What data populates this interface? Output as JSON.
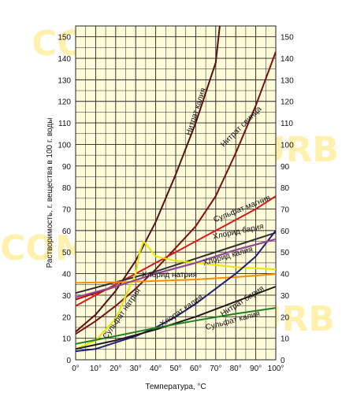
{
  "chart_data": {
    "type": "line",
    "xlabel": "Температура, °С",
    "ylabel": "Растворимость, г. вещества в 100 г. воды",
    "xlim": [
      0,
      100
    ],
    "ylim": [
      0,
      155
    ],
    "x_ticks": [
      "0°",
      "10°",
      "20°",
      "30°",
      "40°",
      "50°",
      "60°",
      "70°",
      "80°",
      "90°",
      "100°"
    ],
    "y_ticks": [
      "0",
      "10",
      "20",
      "30",
      "40",
      "50",
      "60",
      "70",
      "80",
      "90",
      "100",
      "110",
      "120",
      "130",
      "140",
      "150"
    ],
    "grid": true,
    "watermarks": [
      "COM",
      "NURB",
      "COM",
      "NURB"
    ],
    "series": [
      {
        "name": "Нитрат калия",
        "color": "#5a0f0f",
        "x": [
          0,
          10,
          20,
          30,
          40,
          50,
          60,
          70,
          72
        ],
        "y": [
          13,
          21,
          32,
          46,
          64,
          86,
          110,
          138,
          155
        ]
      },
      {
        "name": "Нитрат свинца",
        "color": "#7a1010",
        "x": [
          0,
          10,
          20,
          30,
          40,
          50,
          60,
          70,
          80,
          90,
          100
        ],
        "y": [
          12,
          18,
          25,
          33,
          42,
          52,
          62,
          76,
          96,
          118,
          143
        ]
      },
      {
        "name": "Сульфат магния",
        "color": "#d81818",
        "x": [
          0,
          10,
          20,
          30,
          40,
          50,
          60,
          70,
          80,
          90,
          100
        ],
        "y": [
          25,
          30,
          35,
          40,
          45,
          50,
          55,
          60,
          65,
          70,
          76
        ]
      },
      {
        "name": "Хлорид бария",
        "color": "#303030",
        "x": [
          0,
          20,
          40,
          60,
          80,
          100
        ],
        "y": [
          31,
          36,
          41,
          47,
          53,
          59
        ]
      },
      {
        "name": "Хлорид калия",
        "color": "#c00000",
        "x": [
          0,
          20,
          40,
          60,
          80,
          100
        ],
        "y": [
          28,
          34,
          40,
          45,
          51,
          56
        ]
      },
      {
        "name": "Хлорид натрия",
        "color": "#ff8c00",
        "x": [
          0,
          20,
          40,
          60,
          80,
          100
        ],
        "y": [
          35.7,
          36,
          36.6,
          37.3,
          38.4,
          39.8
        ]
      },
      {
        "name": "Сульфат натрия",
        "color": "#e6e600",
        "x": [
          0,
          10,
          20,
          30,
          32,
          34,
          40,
          50,
          60,
          80,
          100
        ],
        "y": [
          5,
          9,
          19,
          40,
          50,
          55,
          48,
          46,
          45,
          43,
          42
        ]
      },
      {
        "name": "Хлорат калия",
        "color": "#1e1e78",
        "x": [
          0,
          10,
          20,
          30,
          40,
          50,
          60,
          70,
          80,
          90,
          100
        ],
        "y": [
          4,
          5,
          8,
          11,
          15,
          20,
          26,
          33,
          40,
          48,
          60
        ]
      },
      {
        "name": "Нитрат бария",
        "color": "#1a1a1a",
        "x": [
          0,
          20,
          40,
          60,
          80,
          100
        ],
        "y": [
          5,
          9,
          14,
          20,
          27,
          34
        ]
      },
      {
        "name": "Сульфат калия",
        "color": "#208020",
        "x": [
          0,
          20,
          40,
          60,
          80,
          100
        ],
        "y": [
          7.4,
          11,
          14.8,
          18.2,
          21.4,
          24.1
        ]
      },
      {
        "name": "",
        "color": "#8b4a9b",
        "x": [
          0,
          20,
          40,
          60,
          80,
          100
        ],
        "y": [
          29,
          34,
          40,
          45,
          51,
          56
        ]
      }
    ]
  }
}
